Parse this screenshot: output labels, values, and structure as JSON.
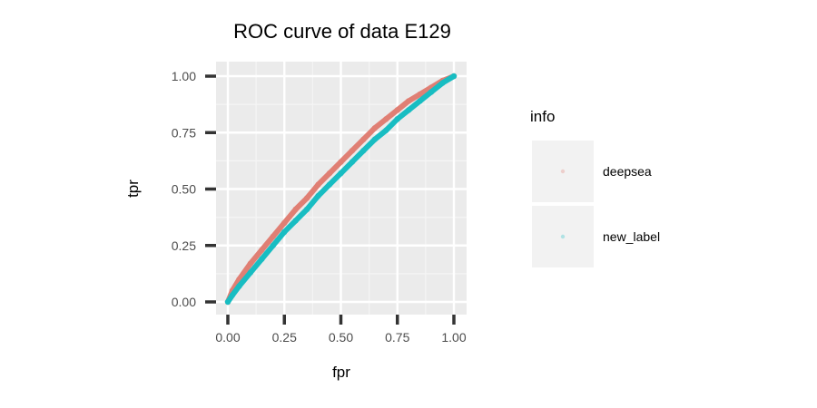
{
  "chart_data": {
    "type": "scatter",
    "title": "ROC curve of data E129",
    "xlabel": "fpr",
    "ylabel": "tpr",
    "xlim": [
      0,
      1
    ],
    "ylim": [
      0,
      1
    ],
    "x_ticks": [
      "0.00",
      "0.25",
      "0.50",
      "0.75",
      "1.00"
    ],
    "y_ticks": [
      "0.00",
      "0.25",
      "0.50",
      "0.75",
      "1.00"
    ],
    "grid": true,
    "legend": {
      "title": "info",
      "position": "right",
      "entries": [
        "deepsea",
        "new_label"
      ]
    },
    "series": [
      {
        "name": "deepsea",
        "color": "#e07f74",
        "x": [
          0,
          0.02,
          0.05,
          0.1,
          0.15,
          0.2,
          0.25,
          0.3,
          0.35,
          0.4,
          0.45,
          0.5,
          0.55,
          0.6,
          0.65,
          0.7,
          0.75,
          0.8,
          0.85,
          0.9,
          0.95,
          1.0
        ],
        "y": [
          0,
          0.05,
          0.1,
          0.17,
          0.23,
          0.29,
          0.35,
          0.41,
          0.46,
          0.52,
          0.57,
          0.62,
          0.67,
          0.72,
          0.77,
          0.81,
          0.85,
          0.89,
          0.92,
          0.95,
          0.98,
          1.0
        ]
      },
      {
        "name": "new_label",
        "color": "#18bdc2",
        "x": [
          0,
          0.02,
          0.05,
          0.1,
          0.15,
          0.2,
          0.25,
          0.3,
          0.35,
          0.4,
          0.45,
          0.5,
          0.55,
          0.6,
          0.65,
          0.7,
          0.75,
          0.8,
          0.85,
          0.9,
          0.95,
          1.0
        ],
        "y": [
          0,
          0.03,
          0.07,
          0.13,
          0.19,
          0.25,
          0.31,
          0.36,
          0.41,
          0.47,
          0.52,
          0.57,
          0.62,
          0.67,
          0.72,
          0.76,
          0.81,
          0.85,
          0.89,
          0.93,
          0.97,
          1.0
        ]
      }
    ]
  }
}
